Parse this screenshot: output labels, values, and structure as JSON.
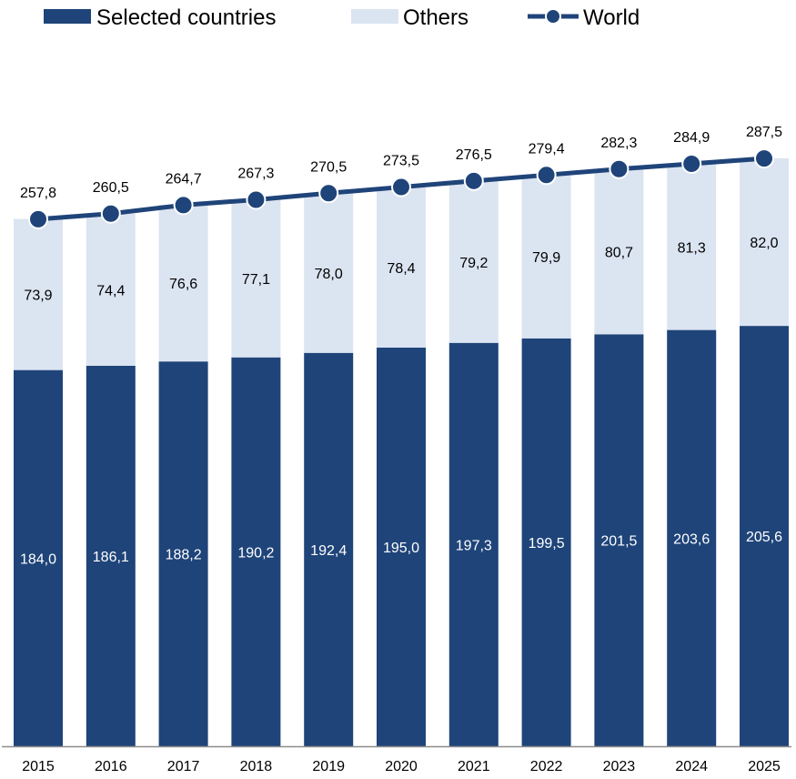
{
  "chart_data": {
    "type": "bar",
    "stacked": true,
    "categories": [
      "2015",
      "2016",
      "2017",
      "2018",
      "2019",
      "2020",
      "2021",
      "2022",
      "2023",
      "2024",
      "2025"
    ],
    "series": [
      {
        "name": "Selected countries",
        "values": [
          184.0,
          186.1,
          188.2,
          190.2,
          192.4,
          195.0,
          197.3,
          199.5,
          201.5,
          203.6,
          205.6
        ],
        "labels": [
          "184,0",
          "186,1",
          "188,2",
          "190,2",
          "192,4",
          "195,0",
          "197,3",
          "199,5",
          "201,5",
          "203,6",
          "205,6"
        ],
        "color": "#1f4479",
        "label_color": "#ffffff"
      },
      {
        "name": "Others",
        "values": [
          73.9,
          74.4,
          76.6,
          77.1,
          78.0,
          78.4,
          79.2,
          79.9,
          80.7,
          81.3,
          82.0
        ],
        "labels": [
          "73,9",
          "74,4",
          "76,6",
          "77,1",
          "78,0",
          "78,4",
          "79,2",
          "79,9",
          "80,7",
          "81,3",
          "82,0"
        ],
        "color": "#dbe4f1",
        "label_color": "#000000"
      }
    ],
    "line": {
      "name": "World",
      "values": [
        257.8,
        260.5,
        264.7,
        267.3,
        270.5,
        273.5,
        276.5,
        279.4,
        282.3,
        284.9,
        287.5
      ],
      "labels": [
        "257,8",
        "260,5",
        "264,7",
        "267,3",
        "270,5",
        "273,5",
        "276,5",
        "279,4",
        "282,3",
        "284,9",
        "287,5"
      ],
      "color": "#1f4479"
    },
    "ylim": [
      0,
      365
    ],
    "grid": false,
    "legend_position": "top-left"
  }
}
